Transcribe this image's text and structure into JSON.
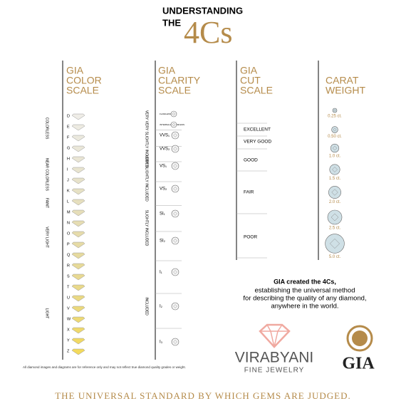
{
  "header": {
    "line1": "UNDERSTANDING",
    "line2": "THE",
    "big": "4Cs"
  },
  "color_scale": {
    "title": [
      "GIA",
      "COLOR",
      "SCALE"
    ],
    "grades": [
      "D",
      "E",
      "F",
      "G",
      "H",
      "I",
      "J",
      "K",
      "L",
      "M",
      "N",
      "O",
      "P",
      "Q",
      "R",
      "S",
      "T",
      "U",
      "V",
      "W",
      "X",
      "Y",
      "Z"
    ],
    "groups": [
      "COLORLESS",
      "NEAR COLORLESS",
      "FAINT",
      "VERY LIGHT",
      "LIGHT"
    ]
  },
  "clarity_scale": {
    "title": [
      "GIA",
      "CLARITY",
      "SCALE"
    ],
    "grades": [
      "FLAWLESS",
      "INTERNALLY FLAWLESS",
      "VVS₁",
      "VVS₂",
      "VS₁",
      "VS₂",
      "SI₁",
      "SI₂",
      "I₁",
      "I₂",
      "I₃"
    ],
    "groups": [
      "VERY VERY SLIGHTLY INCLUDED",
      "VERY SLIGHTLY INCLUDED",
      "SLIGHTLY INCLUDED",
      "INCLUDED"
    ]
  },
  "cut_scale": {
    "title": [
      "GIA",
      "CUT",
      "SCALE"
    ],
    "grades": [
      "EXCELLENT",
      "VERY GOOD",
      "GOOD",
      "FAIR",
      "POOR"
    ]
  },
  "carat_weight": {
    "title": [
      "CARAT",
      "WEIGHT"
    ],
    "weights": [
      "0.25 ct.",
      "0.50 ct.",
      "1.0 ct.",
      "1.5 ct.",
      "2.0 ct.",
      "2.5 ct.",
      "5.0 ct."
    ]
  },
  "statement": {
    "bold": "GIA created the 4Cs,",
    "lines": [
      "establishing the universal method",
      "for describing the quality of any diamond,",
      "anywhere in the world."
    ]
  },
  "brand": {
    "name": "VIRABYANI",
    "sub": "FINE JEWELRY",
    "gia": "GIA"
  },
  "footnote": "All diamond images and diagrams are for reference only and may not reflect true diamond quality grades or weight.",
  "tagline": "THE UNIVERSAL STANDARD BY WHICH GEMS ARE JUDGED."
}
